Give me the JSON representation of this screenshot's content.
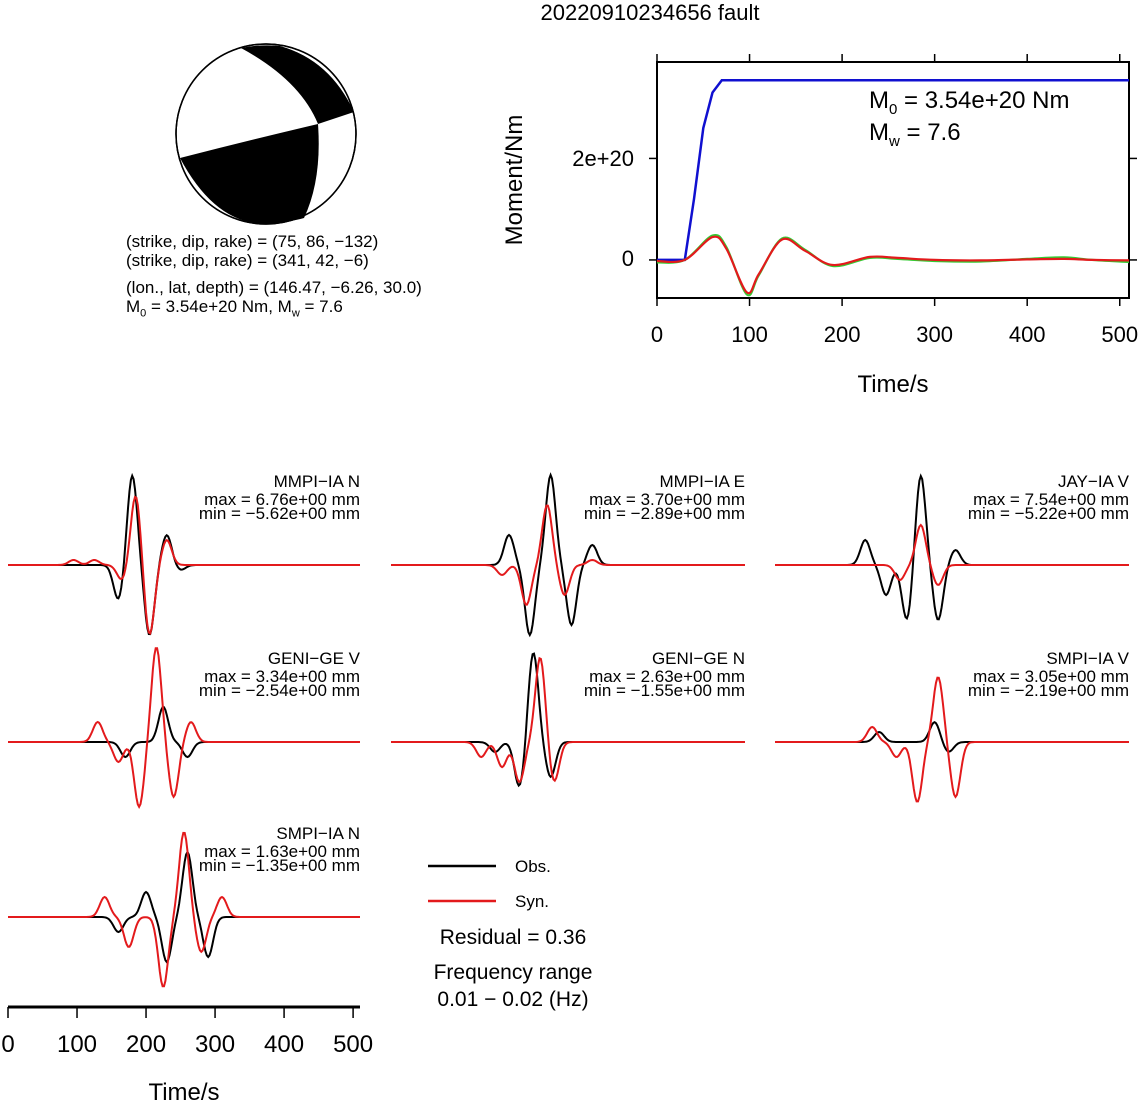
{
  "title": "20220910234656 fault",
  "mechanism": {
    "line1": "(strike, dip, rake) = (75, 86, −132)",
    "line2": "(strike, dip, rake) = (341, 42, −6)",
    "line3": "(lon., lat, depth) = (146.47, −6.26, 30.0)",
    "m0_prefix": "M",
    "m0_sub": "0",
    "m0_rest": " = 3.54e+20 Nm, M",
    "mw_sub": "w",
    "mw_rest": " = 7.6"
  },
  "moment_panel": {
    "ylabel": "Moment/Nm",
    "xlabel": "Time/s",
    "annot_m0_main": "M",
    "annot_m0_sub": "0",
    "annot_m0_rest": " = 3.54e+20 Nm",
    "annot_mw_main": "M",
    "annot_mw_sub": "w",
    "annot_mw_rest": " = 7.6",
    "yticks": [
      "0",
      "2e+20"
    ],
    "xticks": [
      "0",
      "100",
      "200",
      "300",
      "400",
      "500"
    ]
  },
  "waveform_panels": [
    {
      "station": "MMPI−IA N",
      "max": "max = 6.76e+00 mm",
      "min": "min = −5.62e+00 mm"
    },
    {
      "station": "MMPI−IA E",
      "max": "max = 3.70e+00 mm",
      "min": "min = −2.89e+00 mm"
    },
    {
      "station": "JAY−IA V",
      "max": "max = 7.54e+00 mm",
      "min": "min = −5.22e+00 mm"
    },
    {
      "station": "GENI−GE V",
      "max": "max = 3.34e+00 mm",
      "min": "min = −2.54e+00 mm"
    },
    {
      "station": "GENI−GE N",
      "max": "max = 2.63e+00 mm",
      "min": "min = −1.55e+00 mm"
    },
    {
      "station": "SMPI−IA V",
      "max": "max = 3.05e+00 mm",
      "min": "min = −2.19e+00 mm"
    },
    {
      "station": "SMPI−IA N",
      "max": "max = 1.63e+00 mm",
      "min": "min = −1.35e+00 mm"
    }
  ],
  "legend": {
    "obs": "Obs.",
    "syn": "Syn.",
    "residual": "Residual = 0.36",
    "freq_title": "Frequency range",
    "freq_value": "0.01 − 0.02 (Hz)"
  },
  "bottom_axis": {
    "xlabel": "Time/s",
    "xticks": [
      "0",
      "100",
      "200",
      "300",
      "400",
      "500"
    ]
  },
  "colors": {
    "obs": "#000000",
    "syn": "#e31a1c",
    "moment": "#1010d0",
    "stf_green": "#33cc33"
  },
  "chart_data": [
    {
      "type": "line",
      "title": "20220910234656 fault",
      "xlabel": "Time/s",
      "ylabel": "Moment/Nm",
      "xlim": [
        0,
        510
      ],
      "ylim": [
        -7.5e+19,
        3.9e+20
      ],
      "series": [
        {
          "name": "moment",
          "x": [
            0,
            30,
            40,
            50,
            60,
            70,
            510
          ],
          "values": [
            0,
            0,
            1.2e+20,
            2.6e+20,
            3.3e+20,
            3.54e+20,
            3.54e+20
          ]
        },
        {
          "x": [
            0,
            30,
            60,
            75,
            97,
            110,
            135,
            160,
            190,
            230,
            260,
            300,
            350,
            400,
            440,
            470,
            510
          ],
          "values": [
            -5e+18,
            0,
            4.8e+19,
            2.5e+19,
            -6.8e+19,
            -3e+19,
            4.2e+19,
            2e+19,
            -1.2e+19,
            4e+18,
            2e+18,
            -2e+18,
            -3e+18,
            2e+18,
            5e+18,
            0.0,
            -4e+18
          ]
        },
        {
          "x": [
            0,
            30,
            60,
            75,
            97,
            110,
            135,
            160,
            190,
            230,
            260,
            300,
            350,
            400,
            440,
            470,
            510
          ],
          "values": [
            -2e+18,
            0,
            4.5e+19,
            2.2e+19,
            -6.4e+19,
            -2.8e+19,
            4e+19,
            1.8e+19,
            -1e+19,
            6e+18,
            4e+18,
            0.0,
            -1e+18,
            1e+18,
            2e+18,
            0.0,
            -1e+18
          ]
        }
      ]
    }
  ]
}
